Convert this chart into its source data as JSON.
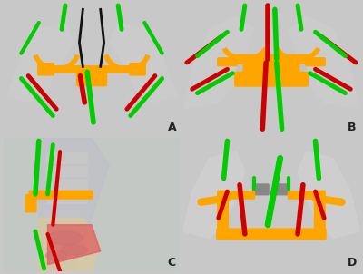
{
  "fig_width": 4.0,
  "fig_height": 3.02,
  "dpi": 100,
  "bg_color": "#c8c8c8",
  "panel_bg_A": "#d0d0d0",
  "panel_bg_B": "#d8d8d8",
  "panel_bg_C": "#c0c0c8",
  "panel_bg_D": "#d0d0d0",
  "border_color": "#ffffff",
  "orange": "#FFA500",
  "green": "#00CC00",
  "red": "#CC0000",
  "black": "#111111",
  "bone_color": "#e0e0e0",
  "labels": [
    "A",
    "B",
    "C",
    "D"
  ],
  "label_fontsize": 9,
  "label_color": "#222222"
}
